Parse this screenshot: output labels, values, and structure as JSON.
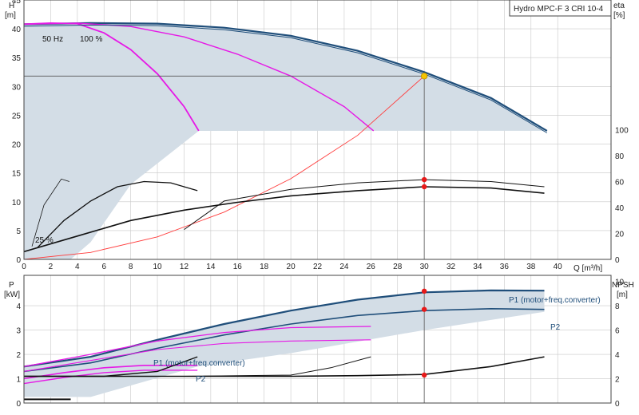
{
  "colors": {
    "envelope": "#d3dde6",
    "navy": "#1f4e7a",
    "magenta": "#e619e6",
    "red_line": "#ff3c3c",
    "marker_red": "#e81919",
    "marker_yellow": "#f5c400",
    "grid": "#c8c8c8",
    "black": "#111111"
  },
  "chart_data": [
    {
      "type": "line",
      "title": "Hydro MPC-F 3 CRI 10-4",
      "xlabel": "Q [m³/h]",
      "y_left_label": [
        "H",
        "[m]"
      ],
      "y_right_label": [
        "eta",
        "[%]"
      ],
      "xlim": [
        0,
        44
      ],
      "ylim_left": [
        0,
        45
      ],
      "ylim_right": [
        0,
        200
      ],
      "x_ticks": [
        "0",
        "2",
        "4",
        "6",
        "8",
        "10",
        "12",
        "14",
        "16",
        "18",
        "20",
        "22",
        "24",
        "26",
        "28",
        "30",
        "32",
        "34",
        "36",
        "38",
        "40"
      ],
      "y_left_ticks": [
        "0",
        "5",
        "10",
        "15",
        "20",
        "25",
        "30",
        "35",
        "40",
        "45"
      ],
      "y_right_ticks": [
        "0",
        "20",
        "40",
        "60",
        "80",
        "100"
      ],
      "annotations": [
        "50 Hz",
        "100 %",
        "25 %"
      ],
      "duty_point": {
        "q": 30,
        "h": 31.8
      },
      "series": [
        {
          "role": "head_3_pumps",
          "points": [
            [
              0,
              40.8
            ],
            [
              5,
              41.0
            ],
            [
              10,
              40.9
            ],
            [
              15,
              40.2
            ],
            [
              20,
              38.8
            ],
            [
              25,
              36.2
            ],
            [
              30,
              32.5
            ],
            [
              35,
              28.0
            ],
            [
              39.2,
              22.3
            ]
          ]
        },
        {
          "role": "head_2_pumps",
          "points": [
            [
              0,
              40.8
            ],
            [
              4,
              41.0
            ],
            [
              8,
              40.4
            ],
            [
              12,
              38.6
            ],
            [
              16,
              35.6
            ],
            [
              20,
              31.8
            ],
            [
              24,
              26.5
            ],
            [
              26.2,
              22.3
            ]
          ]
        },
        {
          "role": "head_1_pump",
          "points": [
            [
              0,
              40.8
            ],
            [
              2,
              41.0
            ],
            [
              4,
              40.9
            ],
            [
              6,
              39.3
            ],
            [
              8,
              36.4
            ],
            [
              10,
              32.2
            ],
            [
              12,
              26.5
            ],
            [
              13.1,
              22.3
            ]
          ]
        },
        {
          "role": "system_curve",
          "points": [
            [
              0,
              0
            ],
            [
              5,
              1.2
            ],
            [
              10,
              3.9
            ],
            [
              15,
              8.2
            ],
            [
              20,
              14.0
            ],
            [
              25,
              21.5
            ],
            [
              30,
              31.8
            ]
          ]
        },
        {
          "role": "eta_3_pumps",
          "points": [
            [
              12,
              23
            ],
            [
              15,
              45
            ],
            [
              20,
              54
            ],
            [
              25,
              59
            ],
            [
              30,
              61.5
            ],
            [
              35,
              60
            ],
            [
              39,
              56
            ]
          ]
        },
        {
          "role": "eta_mid",
          "points": [
            [
              0,
              6
            ],
            [
              4,
              18
            ],
            [
              8,
              30
            ],
            [
              12,
              38
            ],
            [
              16,
              44
            ],
            [
              20,
              49
            ],
            [
              25,
              53
            ],
            [
              30,
              56
            ],
            [
              35,
              55
            ],
            [
              39,
              51
            ]
          ]
        },
        {
          "role": "eta_1_pump",
          "points": [
            [
              1,
              9
            ],
            [
              3,
              30
            ],
            [
              5,
              45
            ],
            [
              7,
              56
            ],
            [
              9,
              60
            ],
            [
              11,
              59
            ],
            [
              13,
              53
            ]
          ]
        },
        {
          "role": "eta_small",
          "points": [
            [
              0.6,
              10
            ],
            [
              1.5,
              42
            ],
            [
              2.8,
              62
            ],
            [
              3.4,
              60
            ]
          ]
        }
      ]
    },
    {
      "type": "line",
      "xlabel": "",
      "y_left_label": [
        "P",
        "[kW]"
      ],
      "y_right_label": [
        "NPSH",
        "[m]"
      ],
      "xlim": [
        0,
        44
      ],
      "ylim_left": [
        0,
        5.25
      ],
      "ylim_right": [
        0,
        10.5
      ],
      "y_left_ticks": [
        "0",
        "1",
        "2",
        "3",
        "4"
      ],
      "y_right_ticks": [
        "0",
        "2",
        "4",
        "6",
        "8",
        "10"
      ],
      "series_labels": [
        "P1 (motor+freq.converter)",
        "P2",
        "P1 (motor+freq.converter)",
        "P2"
      ],
      "duty_markers": {
        "p1": 4.6,
        "p2": 3.85,
        "npsh": 2.3
      },
      "series": [
        {
          "role": "P1_3_pumps",
          "points": [
            [
              0,
              1.5
            ],
            [
              5,
              1.9
            ],
            [
              10,
              2.6
            ],
            [
              15,
              3.25
            ],
            [
              20,
              3.8
            ],
            [
              25,
              4.25
            ],
            [
              30,
              4.55
            ],
            [
              35,
              4.63
            ],
            [
              39,
              4.62
            ]
          ]
        },
        {
          "role": "P2_3_pumps",
          "points": [
            [
              0,
              1.3
            ],
            [
              5,
              1.65
            ],
            [
              10,
              2.25
            ],
            [
              15,
              2.8
            ],
            [
              20,
              3.25
            ],
            [
              25,
              3.6
            ],
            [
              30,
              3.8
            ],
            [
              35,
              3.88
            ],
            [
              39,
              3.85
            ]
          ]
        },
        {
          "role": "P1_2_pumps",
          "points": [
            [
              0,
              1.5
            ],
            [
              5,
              2.0
            ],
            [
              10,
              2.55
            ],
            [
              15,
              2.9
            ],
            [
              20,
              3.1
            ],
            [
              26,
              3.15
            ]
          ]
        },
        {
          "role": "P2_2_pumps",
          "points": [
            [
              0,
              1.3
            ],
            [
              5,
              1.75
            ],
            [
              10,
              2.2
            ],
            [
              15,
              2.45
            ],
            [
              20,
              2.55
            ],
            [
              26,
              2.6
            ]
          ]
        },
        {
          "role": "P1_1_pump",
          "points": [
            [
              0,
              1.0
            ],
            [
              3,
              1.25
            ],
            [
              6,
              1.45
            ],
            [
              9,
              1.55
            ],
            [
              13,
              1.55
            ]
          ]
        },
        {
          "role": "P2_1_pump",
          "points": [
            [
              0,
              0.8
            ],
            [
              3,
              1.05
            ],
            [
              6,
              1.25
            ],
            [
              9,
              1.35
            ],
            [
              13,
              1.35
            ]
          ]
        },
        {
          "role": "NPSH_3_pumps",
          "points": [
            [
              0,
              2.2
            ],
            [
              10,
              2.2
            ],
            [
              20,
              2.2
            ],
            [
              25,
              2.25
            ],
            [
              30,
              2.35
            ],
            [
              35,
              3.0
            ],
            [
              39,
              3.8
            ]
          ]
        },
        {
          "role": "NPSH_2_pumps",
          "points": [
            [
              0,
              2.2
            ],
            [
              12,
              2.2
            ],
            [
              20,
              2.3
            ],
            [
              23,
              2.9
            ],
            [
              26,
              3.8
            ]
          ]
        },
        {
          "role": "NPSH_1_pump",
          "points": [
            [
              0,
              2.2
            ],
            [
              6,
              2.2
            ],
            [
              10,
              2.6
            ],
            [
              13,
              3.8
            ]
          ]
        },
        {
          "role": "NPSH_low",
          "points": [
            [
              0,
              0.3
            ],
            [
              3.5,
              0.3
            ]
          ]
        }
      ]
    }
  ]
}
